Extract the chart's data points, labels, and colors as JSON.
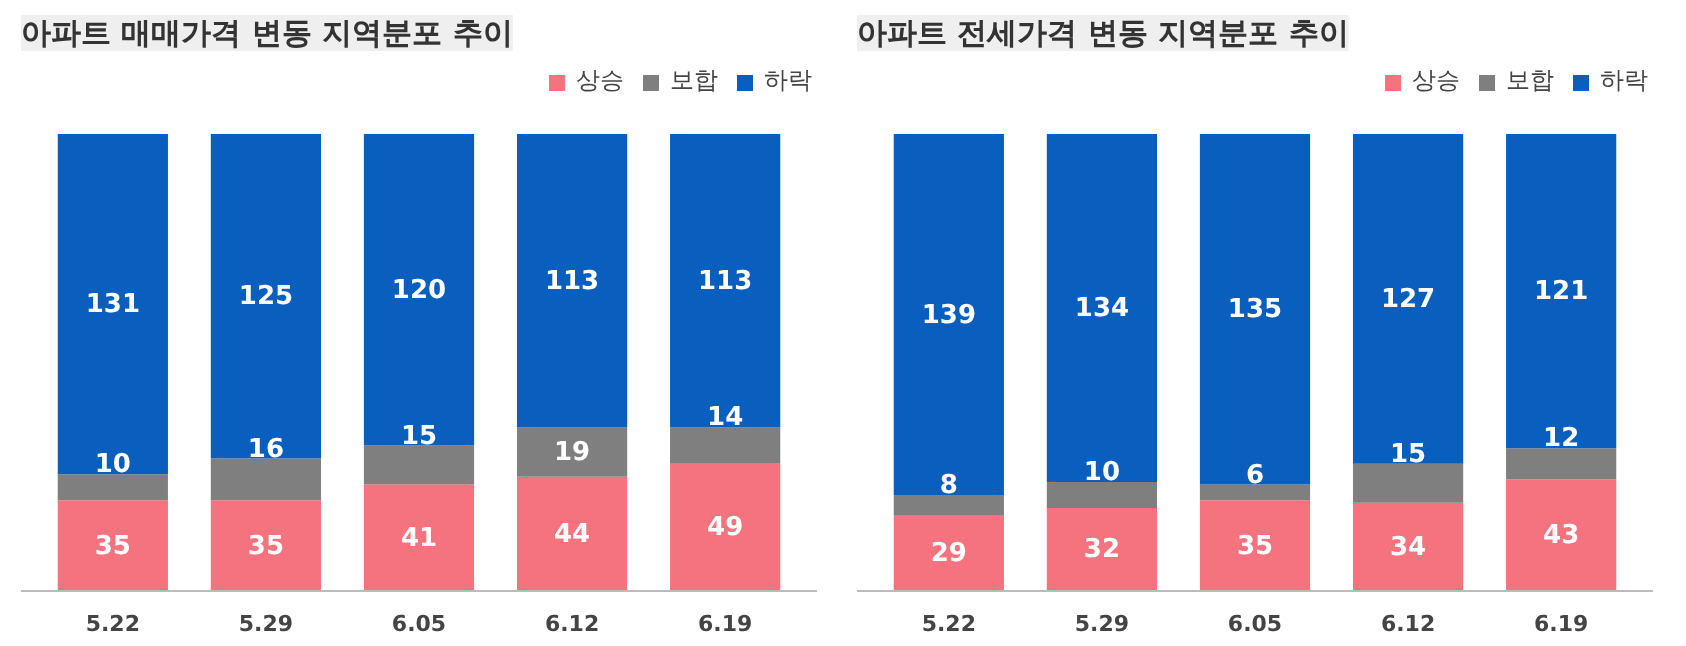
{
  "chart_data": [
    {
      "type": "bar",
      "title": "아파트 매매가격 변동 지역분포 추이",
      "categories": [
        "5.22",
        "5.29",
        "6.05",
        "6.12",
        "6.19"
      ],
      "stacked": true,
      "data_labels": true,
      "legend": "top right",
      "grid": false,
      "series": [
        {
          "name": "상승",
          "color": "#f4737e",
          "values": [
            35,
            35,
            41,
            44,
            49
          ]
        },
        {
          "name": "보합",
          "color": "#7f7f7f",
          "values": [
            10,
            16,
            15,
            19,
            14
          ]
        },
        {
          "name": "하락",
          "color": "#0a5fbe",
          "values": [
            131,
            125,
            120,
            113,
            113
          ]
        }
      ]
    },
    {
      "type": "bar",
      "title": "아파트 전세가격 변동 지역분포 추이",
      "categories": [
        "5.22",
        "5.29",
        "6.05",
        "6.12",
        "6.19"
      ],
      "stacked": true,
      "data_labels": true,
      "legend": "top right",
      "grid": false,
      "series": [
        {
          "name": "상승",
          "color": "#f4737e",
          "values": [
            29,
            32,
            35,
            34,
            43
          ]
        },
        {
          "name": "보합",
          "color": "#7f7f7f",
          "values": [
            8,
            10,
            6,
            15,
            12
          ]
        },
        {
          "name": "하락",
          "color": "#0a5fbe",
          "values": [
            139,
            134,
            135,
            127,
            121
          ]
        }
      ]
    }
  ]
}
